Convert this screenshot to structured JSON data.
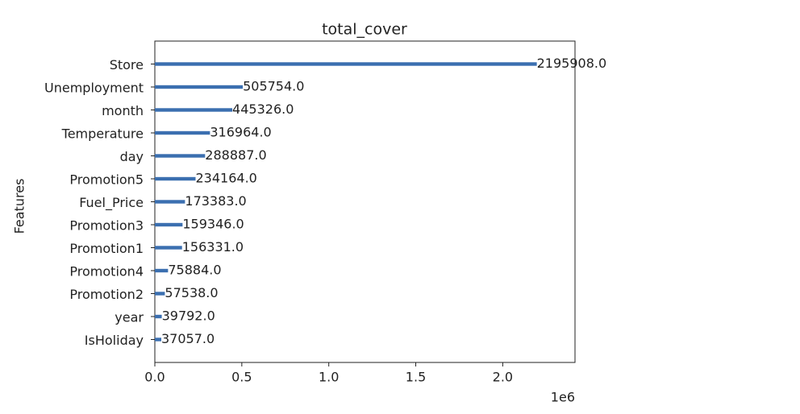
{
  "chart_data": {
    "type": "barh",
    "title": "total_cover",
    "ylabel": "Features",
    "categories": [
      "Store",
      "Unemployment",
      "month",
      "Temperature",
      "day",
      "Promotion5",
      "Fuel_Price",
      "Promotion3",
      "Promotion1",
      "Promotion4",
      "Promotion2",
      "year",
      "IsHoliday"
    ],
    "values": [
      2195908,
      505754,
      445326,
      316964,
      288887,
      234164,
      173383,
      159346,
      156331,
      75884,
      57538,
      39792,
      37057
    ],
    "value_labels": [
      "2195908.0",
      "505754.0",
      "445326.0",
      "316964.0",
      "288887.0",
      "234164.0",
      "173383.0",
      "159346.0",
      "156331.0",
      "75884.0",
      "57538.0",
      "39792.0",
      "37057.0"
    ],
    "color": "#3b6fb0",
    "xlim": [
      0,
      2415499
    ],
    "xticks": [
      {
        "value": 0,
        "label": "0.0"
      },
      {
        "value": 500000,
        "label": "0.5"
      },
      {
        "value": 1000000,
        "label": "1.0"
      },
      {
        "value": 1500000,
        "label": "1.5"
      },
      {
        "value": 2000000,
        "label": "2.0"
      }
    ],
    "x_offset_label": "1e6"
  }
}
